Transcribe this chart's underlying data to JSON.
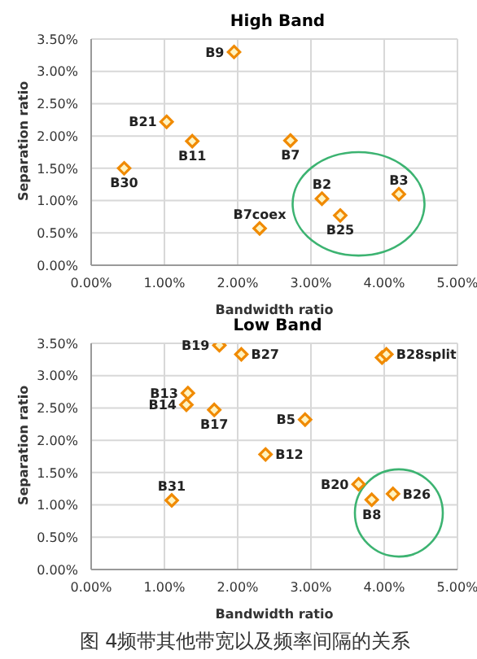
{
  "chart_data": [
    {
      "type": "scatter",
      "title": "High Band",
      "xlabel": "Bandwidth ratio",
      "ylabel": "Separation ratio",
      "xlim": [
        0,
        5
      ],
      "xticks": [
        {
          "value": 0,
          "label": "0.00%"
        },
        {
          "value": 1,
          "label": "1.00%"
        },
        {
          "value": 2,
          "label": "2.00%"
        },
        {
          "value": 3,
          "label": "3.00%"
        },
        {
          "value": 4,
          "label": "4.00%"
        },
        {
          "value": 5,
          "label": "5.00%"
        }
      ],
      "ylim": [
        0,
        3.5
      ],
      "yticks": [
        {
          "value": 0,
          "label": "0.00%"
        },
        {
          "value": 0.5,
          "label": "0.50%"
        },
        {
          "value": 1,
          "label": "1.00%"
        },
        {
          "value": 1.5,
          "label": "1.50%"
        },
        {
          "value": 2,
          "label": "2.00%"
        },
        {
          "value": 2.5,
          "label": "2.50%"
        },
        {
          "value": 3,
          "label": "3.00%"
        },
        {
          "value": 3.5,
          "label": "3.50%"
        }
      ],
      "grid": true,
      "marker": "diamond",
      "series": [
        {
          "color": "#f08a00",
          "x": [
            1.95,
            1.03,
            1.38,
            0.45,
            2.72,
            2.3,
            3.15,
            3.4,
            4.2
          ],
          "values": [
            3.3,
            2.22,
            1.92,
            1.5,
            1.93,
            0.57,
            1.03,
            0.77,
            1.1
          ]
        }
      ],
      "annotations": [
        {
          "text": "B9",
          "x": 1.95,
          "y": 3.3
        },
        {
          "text": "B21",
          "x": 1.03,
          "y": 2.22
        },
        {
          "text": "B11",
          "x": 1.38,
          "y": 1.92
        },
        {
          "text": "B30",
          "x": 0.45,
          "y": 1.5
        },
        {
          "text": "B7",
          "x": 2.72,
          "y": 1.93
        },
        {
          "text": "B7coex",
          "x": 2.3,
          "y": 0.57
        },
        {
          "text": "B2",
          "x": 3.15,
          "y": 1.03
        },
        {
          "text": "B25",
          "x": 3.4,
          "y": 0.77
        },
        {
          "text": "B3",
          "x": 4.2,
          "y": 1.1
        }
      ]
    },
    {
      "type": "scatter",
      "title": "Low Band",
      "xlabel": "Bandwidth ratio",
      "ylabel": "Separation ratio",
      "xlim": [
        0,
        5
      ],
      "xticks": [
        {
          "value": 0,
          "label": "0.00%"
        },
        {
          "value": 1,
          "label": "1.00%"
        },
        {
          "value": 2,
          "label": "2.00%"
        },
        {
          "value": 3,
          "label": "3.00%"
        },
        {
          "value": 4,
          "label": "4.00%"
        },
        {
          "value": 5,
          "label": "5.00%"
        }
      ],
      "ylim": [
        0,
        3.5
      ],
      "yticks": [
        {
          "value": 0,
          "label": "0.00%"
        },
        {
          "value": 0.5,
          "label": "0.50%"
        },
        {
          "value": 1,
          "label": "1.00%"
        },
        {
          "value": 1.5,
          "label": "1.50%"
        },
        {
          "value": 2,
          "label": "2.00%"
        },
        {
          "value": 2.5,
          "label": "2.50%"
        },
        {
          "value": 3,
          "label": "3.00%"
        },
        {
          "value": 3.5,
          "label": "3.50%"
        }
      ],
      "grid": true,
      "marker": "diamond",
      "series": [
        {
          "color": "#f08a00",
          "x": [
            1.75,
            2.05,
            3.97,
            4.03,
            1.32,
            1.3,
            1.68,
            2.92,
            2.38,
            1.1,
            3.65,
            3.83,
            4.12
          ],
          "values": [
            3.47,
            3.33,
            3.28,
            3.33,
            2.73,
            2.55,
            2.47,
            2.32,
            1.78,
            1.07,
            1.32,
            1.08,
            1.17
          ]
        }
      ],
      "annotations": [
        {
          "text": "B19",
          "x": 1.75,
          "y": 3.47
        },
        {
          "text": "B27",
          "x": 2.05,
          "y": 3.33
        },
        {
          "text": "B28split",
          "x": 4.03,
          "y": 3.33
        },
        {
          "text": "B13",
          "x": 1.32,
          "y": 2.73
        },
        {
          "text": "B14",
          "x": 1.3,
          "y": 2.55
        },
        {
          "text": "B17",
          "x": 1.68,
          "y": 2.47
        },
        {
          "text": "B5",
          "x": 2.92,
          "y": 2.32
        },
        {
          "text": "B12",
          "x": 2.38,
          "y": 1.78
        },
        {
          "text": "B31",
          "x": 1.1,
          "y": 1.07
        },
        {
          "text": "B20",
          "x": 3.65,
          "y": 1.32
        },
        {
          "text": "B8",
          "x": 3.83,
          "y": 1.08
        },
        {
          "text": "B26",
          "x": 4.12,
          "y": 1.17
        },
        "图 4频带其他带宽以及频率间隔的关系"
      ]
    }
  ]
}
